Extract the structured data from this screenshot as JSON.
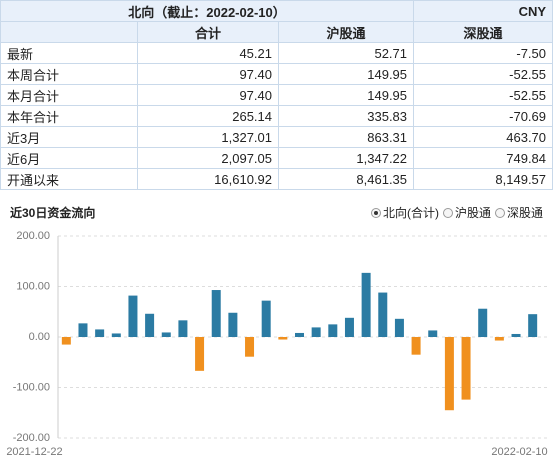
{
  "header": {
    "title": "北向（截止：2022-02-10）",
    "unit": "CNY"
  },
  "table": {
    "columns": [
      "合计",
      "沪股通",
      "深股通"
    ],
    "rows": [
      [
        "最新",
        "45.21",
        "52.71",
        "-7.50"
      ],
      [
        "本周合计",
        "97.40",
        "149.95",
        "-52.55"
      ],
      [
        "本月合计",
        "97.40",
        "149.95",
        "-52.55"
      ],
      [
        "本年合计",
        "265.14",
        "335.83",
        "-70.69"
      ],
      [
        "近3月",
        "1,327.01",
        "863.31",
        "463.70"
      ],
      [
        "近6月",
        "2,097.05",
        "1,347.22",
        "749.84"
      ],
      [
        "开通以来",
        "16,610.92",
        "8,461.35",
        "8,149.57"
      ]
    ]
  },
  "chart_data": {
    "type": "bar",
    "title": "近30日资金流向",
    "options": [
      "北向(合计)",
      "沪股通",
      "深股通"
    ],
    "selected": 0,
    "categories": [
      "2021-12-22",
      null,
      null,
      null,
      null,
      null,
      null,
      null,
      null,
      null,
      null,
      null,
      null,
      null,
      null,
      null,
      null,
      null,
      null,
      null,
      null,
      null,
      null,
      null,
      null,
      null,
      null,
      null,
      "2022-02-10"
    ],
    "values": [
      -15,
      27,
      15,
      7,
      82,
      46,
      9,
      33,
      -67,
      93,
      48,
      -39,
      72,
      -5,
      8,
      19,
      25,
      38,
      127,
      88,
      36,
      -35,
      13,
      -145,
      -124,
      56,
      -7,
      6,
      45.21
    ],
    "color": "#2b7ba3",
    "negative_color": "#f0901e",
    "ylim": [
      -200,
      200
    ],
    "yticks": [
      {
        "value": -200,
        "label": "-200.00"
      },
      {
        "value": -100,
        "label": "-100.00"
      },
      {
        "value": 0,
        "label": "0.00"
      },
      {
        "value": 100,
        "label": "100.00"
      },
      {
        "value": 200,
        "label": "200.00"
      }
    ],
    "grid": true
  }
}
